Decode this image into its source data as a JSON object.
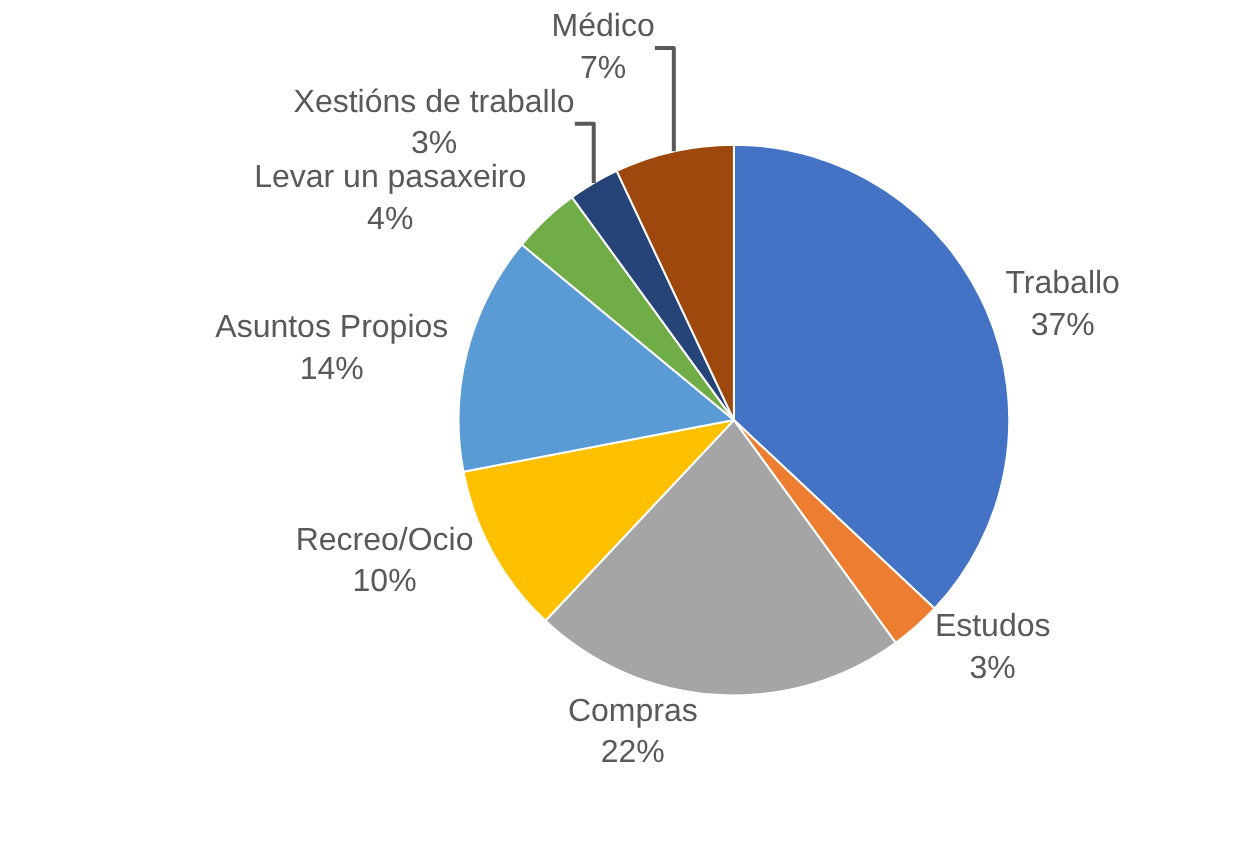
{
  "chart_data": {
    "type": "pie",
    "categories": [
      "Traballo",
      "Estudos",
      "Compras",
      "Recreo/Ocio",
      "Asuntos Propios",
      "Levar un pasaxeiro",
      "Xestións de traballo",
      "Médico"
    ],
    "values": [
      37,
      3,
      22,
      10,
      14,
      4,
      3,
      7
    ],
    "value_labels": [
      "37%",
      "3%",
      "22%",
      "10%",
      "14%",
      "4%",
      "3%",
      "7%"
    ],
    "colors": [
      "#4472c4",
      "#ed7d31",
      "#a5a5a5",
      "#ffc000",
      "#5b9bd5",
      "#70ad47",
      "#264478",
      "#9e480e"
    ],
    "legend": false
  }
}
